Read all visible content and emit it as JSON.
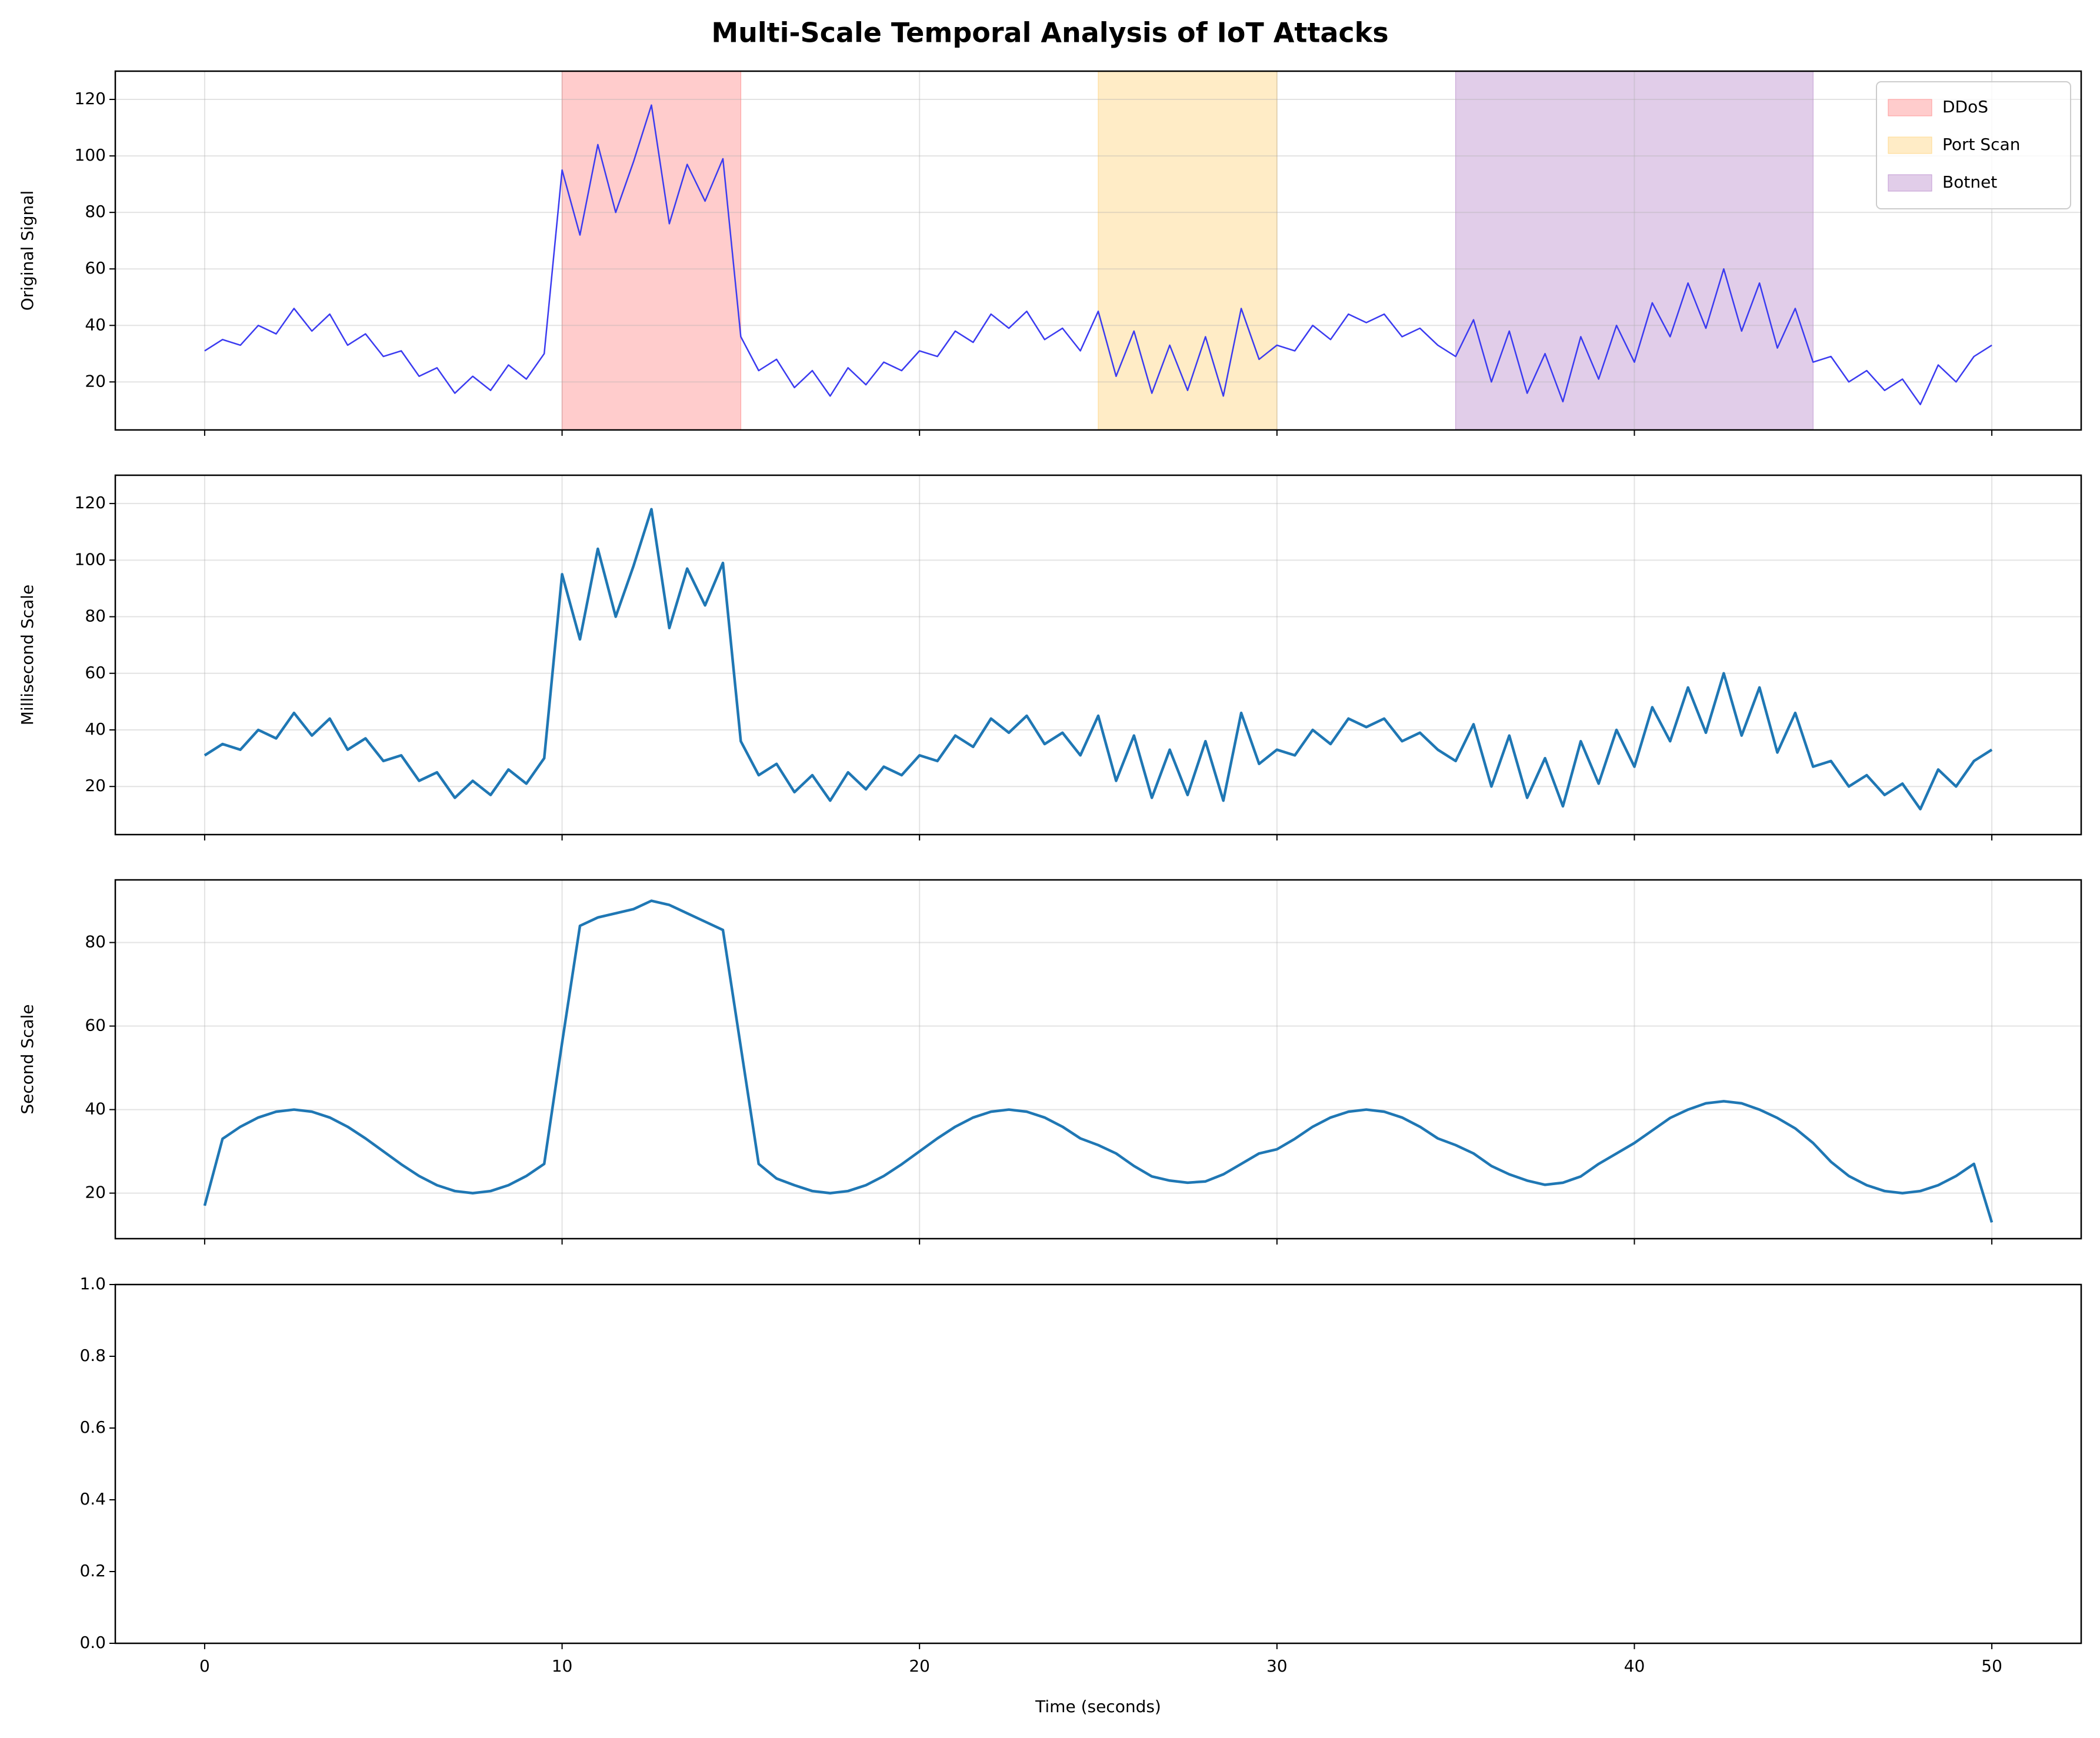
{
  "title": "Multi-Scale Temporal Analysis of IoT Attacks",
  "chart_data": [
    {
      "type": "line",
      "ylabel": "Original Signal",
      "x": [
        0,
        0.5,
        1,
        1.5,
        2,
        2.5,
        3,
        3.5,
        4,
        4.5,
        5,
        5.5,
        6,
        6.5,
        7,
        7.5,
        8,
        8.5,
        9,
        9.5,
        10,
        10.5,
        11,
        11.5,
        12,
        12.5,
        13,
        13.5,
        14,
        14.5,
        15,
        15.5,
        16,
        16.5,
        17,
        17.5,
        18,
        18.5,
        19,
        19.5,
        20,
        20.5,
        21,
        21.5,
        22,
        22.5,
        23,
        23.5,
        24,
        24.5,
        25,
        25.5,
        26,
        26.5,
        27,
        27.5,
        28,
        28.5,
        29,
        29.5,
        30,
        30.5,
        31,
        31.5,
        32,
        32.5,
        33,
        33.5,
        34,
        34.5,
        35,
        35.5,
        36,
        36.5,
        37,
        37.5,
        38,
        38.5,
        39,
        39.5,
        40,
        40.5,
        41,
        41.5,
        42,
        42.5,
        43,
        43.5,
        44,
        44.5,
        45,
        45.5,
        46,
        46.5,
        47,
        47.5,
        48,
        48.5,
        49,
        49.5,
        50
      ],
      "series": [
        {
          "color": "#3b3bf0",
          "values": [
            31,
            35,
            33,
            40,
            37,
            46,
            38,
            44,
            33,
            37,
            29,
            31,
            22,
            25,
            16,
            22,
            17,
            26,
            21,
            30,
            95,
            72,
            104,
            80,
            98,
            118,
            76,
            97,
            84,
            99,
            36,
            24,
            28,
            18,
            24,
            15,
            25,
            19,
            27,
            24,
            31,
            29,
            38,
            34,
            44,
            39,
            45,
            35,
            39,
            31,
            45,
            22,
            38,
            16,
            33,
            17,
            36,
            15,
            46,
            28,
            33,
            31,
            40,
            35,
            44,
            41,
            44,
            36,
            39,
            33,
            29,
            42,
            20,
            38,
            16,
            30,
            13,
            36,
            21,
            40,
            27,
            48,
            36,
            55,
            39,
            60,
            38,
            55,
            32,
            46,
            27,
            29,
            20,
            24,
            17,
            21,
            12,
            26,
            20,
            29,
            33
          ]
        }
      ],
      "spans": [
        {
          "name": "DDoS",
          "start": 10,
          "end": 15,
          "color": "#ff9999"
        },
        {
          "name": "Port Scan",
          "start": 25,
          "end": 30,
          "color": "#ffd98e"
        },
        {
          "name": "Botnet",
          "start": 35,
          "end": 45,
          "color": "#c39bd3"
        }
      ],
      "legend": "upper right",
      "xlim": [
        -2.5,
        52.5
      ],
      "xticks": [
        0,
        10,
        20,
        30,
        40,
        50
      ],
      "ylim": [
        3,
        130
      ],
      "yticks": [
        20,
        40,
        60,
        80,
        100,
        120
      ],
      "grid": true
    },
    {
      "type": "line",
      "ylabel": "Millisecond Scale",
      "x": [
        0,
        0.5,
        1,
        1.5,
        2,
        2.5,
        3,
        3.5,
        4,
        4.5,
        5,
        5.5,
        6,
        6.5,
        7,
        7.5,
        8,
        8.5,
        9,
        9.5,
        10,
        10.5,
        11,
        11.5,
        12,
        12.5,
        13,
        13.5,
        14,
        14.5,
        15,
        15.5,
        16,
        16.5,
        17,
        17.5,
        18,
        18.5,
        19,
        19.5,
        20,
        20.5,
        21,
        21.5,
        22,
        22.5,
        23,
        23.5,
        24,
        24.5,
        25,
        25.5,
        26,
        26.5,
        27,
        27.5,
        28,
        28.5,
        29,
        29.5,
        30,
        30.5,
        31,
        31.5,
        32,
        32.5,
        33,
        33.5,
        34,
        34.5,
        35,
        35.5,
        36,
        36.5,
        37,
        37.5,
        38,
        38.5,
        39,
        39.5,
        40,
        40.5,
        41,
        41.5,
        42,
        42.5,
        43,
        43.5,
        44,
        44.5,
        45,
        45.5,
        46,
        46.5,
        47,
        47.5,
        48,
        48.5,
        49,
        49.5,
        50
      ],
      "series": [
        {
          "color": "#1f77b4",
          "values": [
            31,
            35,
            33,
            40,
            37,
            46,
            38,
            44,
            33,
            37,
            29,
            31,
            22,
            25,
            16,
            22,
            17,
            26,
            21,
            30,
            95,
            72,
            104,
            80,
            98,
            118,
            76,
            97,
            84,
            99,
            36,
            24,
            28,
            18,
            24,
            15,
            25,
            19,
            27,
            24,
            31,
            29,
            38,
            34,
            44,
            39,
            45,
            35,
            39,
            31,
            45,
            22,
            38,
            16,
            33,
            17,
            36,
            15,
            46,
            28,
            33,
            31,
            40,
            35,
            44,
            41,
            44,
            36,
            39,
            33,
            29,
            42,
            20,
            38,
            16,
            30,
            13,
            36,
            21,
            40,
            27,
            48,
            36,
            55,
            39,
            60,
            38,
            55,
            32,
            46,
            27,
            29,
            20,
            24,
            17,
            21,
            12,
            26,
            20,
            29,
            33
          ]
        }
      ],
      "xlim": [
        -2.5,
        52.5
      ],
      "xticks": [
        0,
        10,
        20,
        30,
        40,
        50
      ],
      "ylim": [
        3,
        130
      ],
      "yticks": [
        20,
        40,
        60,
        80,
        100,
        120
      ],
      "grid": true
    },
    {
      "type": "line",
      "ylabel": "Second Scale",
      "x": [
        0,
        0.5,
        1,
        1.5,
        2,
        2.5,
        3,
        3.5,
        4,
        4.5,
        5,
        5.5,
        6,
        6.5,
        7,
        7.5,
        8,
        8.5,
        9,
        9.5,
        10,
        10.5,
        11,
        11.5,
        12,
        12.5,
        13,
        13.5,
        14,
        14.5,
        15,
        15.5,
        16,
        16.5,
        17,
        17.5,
        18,
        18.5,
        19,
        19.5,
        20,
        20.5,
        21,
        21.5,
        22,
        22.5,
        23,
        23.5,
        24,
        24.5,
        25,
        25.5,
        26,
        26.5,
        27,
        27.5,
        28,
        28.5,
        29,
        29.5,
        30,
        30.5,
        31,
        31.5,
        32,
        32.5,
        33,
        33.5,
        34,
        34.5,
        35,
        35.5,
        36,
        36.5,
        37,
        37.5,
        38,
        38.5,
        39,
        39.5,
        40,
        40.5,
        41,
        41.5,
        42,
        42.5,
        43,
        43.5,
        44,
        44.5,
        45,
        45.5,
        46,
        46.5,
        47,
        47.5,
        48,
        48.5,
        49,
        49.5,
        50
      ],
      "series": [
        {
          "color": "#1f77b4",
          "values": [
            17,
            33,
            35.9,
            38.1,
            39.5,
            40,
            39.5,
            38.1,
            35.9,
            33.1,
            30,
            26.9,
            24.1,
            21.9,
            20.5,
            20,
            20.5,
            21.9,
            24.1,
            27,
            56,
            84,
            86,
            87,
            88,
            90,
            89,
            87,
            85,
            83,
            55,
            27,
            23.5,
            21.9,
            20.5,
            20,
            20.5,
            21.9,
            24.1,
            26.9,
            30,
            33.1,
            35.9,
            38.1,
            39.5,
            40,
            39.5,
            38.1,
            35.9,
            33.1,
            31.5,
            29.5,
            26.5,
            24,
            23,
            22.5,
            22.8,
            24.5,
            27,
            29.5,
            30.5,
            33,
            35.9,
            38.1,
            39.5,
            40,
            39.5,
            38.1,
            35.9,
            33.1,
            31.5,
            29.5,
            26.5,
            24.5,
            23,
            22,
            22.5,
            24,
            27,
            29.5,
            32,
            35,
            38,
            40,
            41.5,
            42,
            41.5,
            40,
            38,
            35.5,
            32,
            27.5,
            24.1,
            21.9,
            20.5,
            20,
            20.5,
            21.9,
            24.1,
            27,
            13
          ]
        }
      ],
      "xlim": [
        -2.5,
        52.5
      ],
      "xticks": [
        0,
        10,
        20,
        30,
        40,
        50
      ],
      "ylim": [
        9.1,
        95
      ],
      "yticks": [
        20,
        40,
        60,
        80
      ],
      "grid": true
    },
    {
      "type": "line",
      "xlabel": "Time (seconds)",
      "x": [],
      "series": [],
      "xlim": [
        -2.5,
        52.5
      ],
      "xticks": [
        0,
        10,
        20,
        30,
        40,
        50
      ],
      "ylim": [
        0,
        1
      ],
      "yticks": [
        {
          "value": 0,
          "label": "0.0"
        },
        {
          "value": 0.2,
          "label": "0.2"
        },
        {
          "value": 0.4,
          "label": "0.4"
        },
        {
          "value": 0.6,
          "label": "0.6"
        },
        {
          "value": 0.8,
          "label": "0.8"
        },
        {
          "value": 1,
          "label": "1.0"
        }
      ],
      "grid": false
    }
  ]
}
